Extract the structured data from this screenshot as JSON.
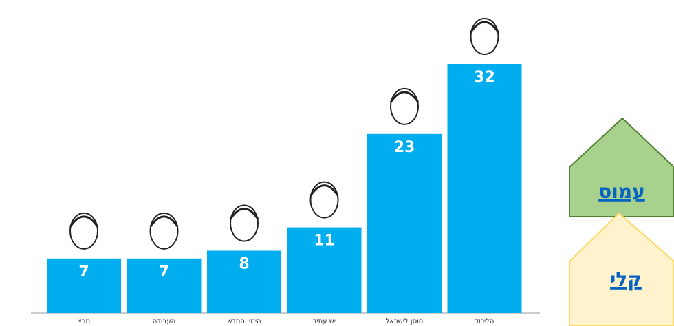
{
  "chart_data": {
    "type": "bar",
    "categories": [
      "מרצ",
      "העבודה",
      "הימין החדש",
      "יש עתיד",
      "חוסן לישראל",
      "הליכוד"
    ],
    "values": [
      7,
      7,
      8,
      11,
      23,
      32
    ],
    "color": "#00aeef"
  },
  "buttons": [
    {
      "label": "עמוס"
    },
    {
      "label": "קלי"
    }
  ]
}
